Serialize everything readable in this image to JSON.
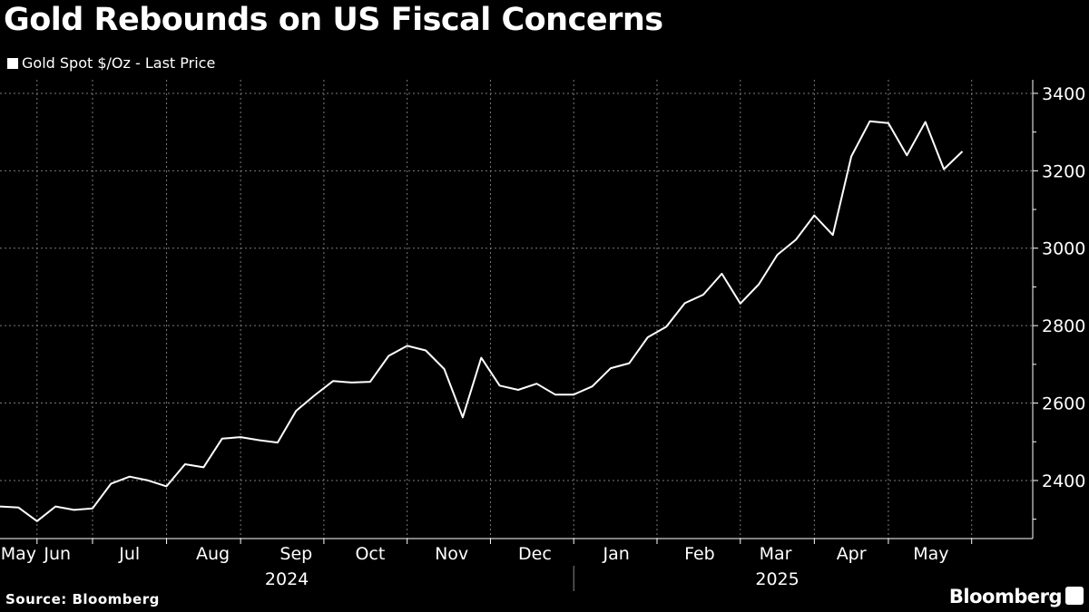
{
  "header": {
    "title": "Gold Rebounds on US Fiscal Concerns"
  },
  "footer": {
    "source": "Source: Bloomberg",
    "brand": "Bloomberg"
  },
  "chart_data": {
    "type": "line",
    "title": "Gold Rebounds on US Fiscal Concerns",
    "xlabel": "",
    "ylabel": "",
    "legend": "top-left",
    "grid": true,
    "ylim": [
      2250,
      3435
    ],
    "yticks": [
      2400,
      2600,
      2800,
      3000,
      3200,
      3400
    ],
    "xlim": [
      0,
      55.8
    ],
    "months": [
      {
        "label": "May",
        "center": 1.0
      },
      {
        "label": "Jun",
        "center": 3.1
      },
      {
        "label": "Jul",
        "center": 7.0
      },
      {
        "label": "Aug",
        "center": 11.5
      },
      {
        "label": "Sep",
        "center": 16.0
      },
      {
        "label": "Oct",
        "center": 20.0
      },
      {
        "label": "Nov",
        "center": 24.4
      },
      {
        "label": "Dec",
        "center": 28.9
      },
      {
        "label": "Jan",
        "center": 33.3
      },
      {
        "label": "Feb",
        "center": 37.8
      },
      {
        "label": "Mar",
        "center": 41.9
      },
      {
        "label": "Apr",
        "center": 46.0
      },
      {
        "label": "May",
        "center": 50.3
      }
    ],
    "month_dividers": [
      2.0,
      5.0,
      9.0,
      13.0,
      17.5,
      22.0,
      26.5,
      31.0,
      35.5,
      40.0,
      44.0,
      48.0,
      52.5
    ],
    "years": [
      {
        "label": "2024",
        "center": 15.5
      },
      {
        "label": "2025",
        "center": 42.0
      }
    ],
    "year_divider": 31.0,
    "series": [
      {
        "name": "Gold Spot $/Oz - Last Price",
        "x": [
          0,
          1,
          2,
          3,
          4,
          5,
          6,
          7,
          8,
          9,
          10,
          11,
          12,
          13,
          14,
          15,
          16,
          17,
          18,
          19,
          20,
          21,
          22,
          23,
          24,
          25,
          26,
          27,
          28,
          29,
          30,
          31,
          32,
          33,
          34,
          35,
          36,
          37,
          38,
          39,
          40,
          41,
          42,
          43,
          44,
          45,
          46,
          47,
          48,
          49,
          50,
          51,
          52
        ],
        "values": [
          2333,
          2330,
          2295,
          2333,
          2324,
          2328,
          2392,
          2410,
          2400,
          2385,
          2442,
          2434,
          2508,
          2512,
          2504,
          2498,
          2580,
          2620,
          2657,
          2653,
          2655,
          2722,
          2748,
          2736,
          2688,
          2563,
          2717,
          2645,
          2634,
          2650,
          2622,
          2622,
          2643,
          2690,
          2703,
          2770,
          2797,
          2858,
          2880,
          2934,
          2857,
          2907,
          2983,
          3022,
          3085,
          3034,
          3237,
          3328,
          3323,
          3240,
          3326,
          3204,
          3250
        ]
      }
    ]
  }
}
